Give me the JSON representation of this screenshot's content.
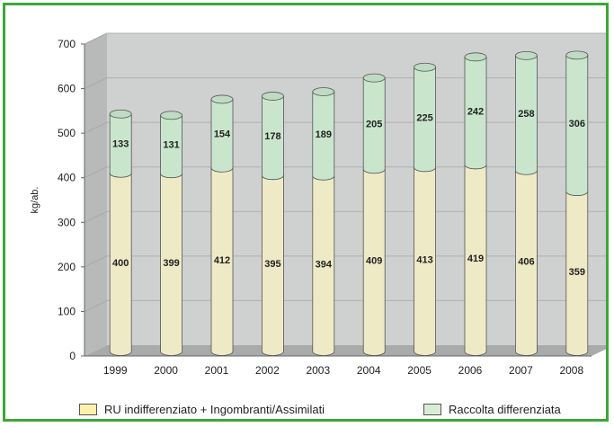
{
  "chart_data": {
    "type": "bar",
    "stacked": true,
    "categories": [
      "1999",
      "2000",
      "2001",
      "2002",
      "2003",
      "2004",
      "2005",
      "2006",
      "2007",
      "2008"
    ],
    "series": [
      {
        "name": "RU indifferenziato + Ingombranti/Assimilati",
        "values": [
          400,
          399,
          412,
          395,
          394,
          409,
          413,
          419,
          406,
          359
        ],
        "color": "#eeeac6"
      },
      {
        "name": "Raccolta differenziata",
        "values": [
          133,
          131,
          154,
          178,
          189,
          205,
          225,
          242,
          258,
          306
        ],
        "color": "#c9e6cd"
      }
    ],
    "ylabel": "kg/ab.",
    "ylim": [
      0,
      700
    ],
    "yticks": [
      0,
      100,
      200,
      300,
      400,
      500,
      600,
      700
    ],
    "grid": true,
    "legend": "bottom",
    "legend_swatches": [
      "#fdf1ab",
      "#d8eed3"
    ],
    "frame_color": "#3aa935"
  }
}
